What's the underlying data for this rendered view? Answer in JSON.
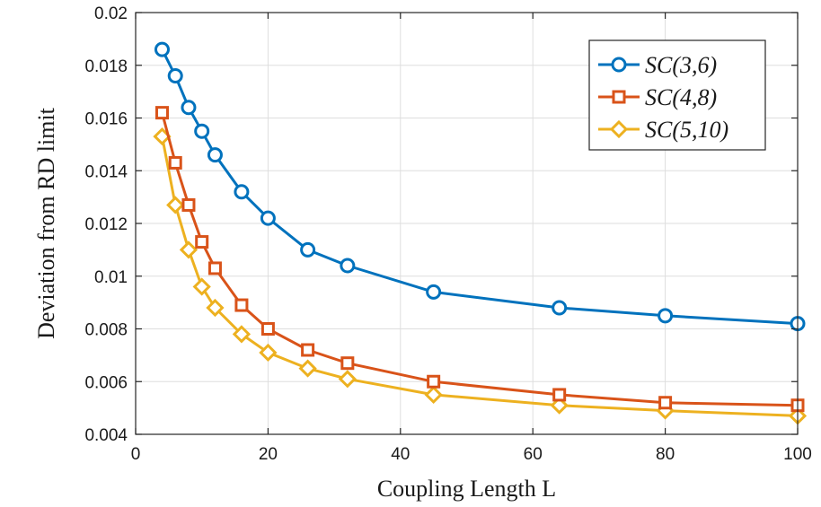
{
  "chart_data": {
    "type": "line",
    "title": "",
    "xlabel": "Coupling Length L",
    "ylabel": "Deviation from RD limit",
    "xlim": [
      0,
      100
    ],
    "ylim": [
      0.004,
      0.02
    ],
    "xticks": [
      0,
      20,
      40,
      60,
      80,
      100
    ],
    "xtick_labels": [
      "0",
      "20",
      "40",
      "60",
      "80",
      "100"
    ],
    "yticks": [
      0.004,
      0.006,
      0.008,
      0.01,
      0.012,
      0.014,
      0.016,
      0.018,
      0.02
    ],
    "ytick_labels": [
      "0.004",
      "0.006",
      "0.008",
      "0.01",
      "0.012",
      "0.014",
      "0.016",
      "0.018",
      "0.02"
    ],
    "grid": true,
    "legend_position": "top-right",
    "series": [
      {
        "name": "SC(3,6)",
        "color": "#0072BD",
        "marker": "circle",
        "x": [
          4,
          6,
          8,
          10,
          12,
          16,
          20,
          26,
          32,
          45,
          64,
          80,
          100
        ],
        "y": [
          0.0186,
          0.0176,
          0.0164,
          0.0155,
          0.0146,
          0.0132,
          0.0122,
          0.011,
          0.0104,
          0.0094,
          0.0088,
          0.0085,
          0.0082
        ]
      },
      {
        "name": "SC(4,8)",
        "color": "#D95319",
        "marker": "square",
        "x": [
          4,
          6,
          8,
          10,
          12,
          16,
          20,
          26,
          32,
          45,
          64,
          80,
          100
        ],
        "y": [
          0.0162,
          0.0143,
          0.0127,
          0.0113,
          0.0103,
          0.0089,
          0.008,
          0.0072,
          0.0067,
          0.006,
          0.0055,
          0.0052,
          0.0051
        ]
      },
      {
        "name": "SC(5,10)",
        "color": "#EDB120",
        "marker": "diamond",
        "x": [
          4,
          6,
          8,
          10,
          12,
          16,
          20,
          26,
          32,
          45,
          64,
          80,
          100
        ],
        "y": [
          0.0153,
          0.0127,
          0.011,
          0.0096,
          0.0088,
          0.0078,
          0.0071,
          0.0065,
          0.0061,
          0.0055,
          0.0051,
          0.0049,
          0.0047
        ]
      }
    ]
  }
}
